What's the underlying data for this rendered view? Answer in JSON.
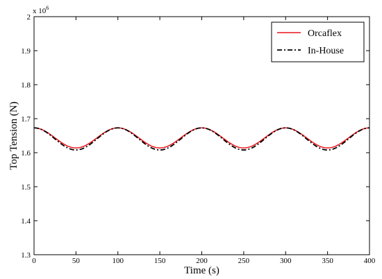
{
  "chart_data": {
    "type": "line",
    "title": "",
    "xlabel": "Time (s)",
    "ylabel": "Top Tension (N)",
    "y_exponent_label": "x 10",
    "y_exponent_power": "6",
    "xlim": [
      0,
      400
    ],
    "ylim": [
      1.3,
      2.0
    ],
    "x_ticks": [
      0,
      50,
      100,
      150,
      200,
      250,
      300,
      350,
      400
    ],
    "y_ticks": [
      1.3,
      1.4,
      1.5,
      1.6,
      1.7,
      1.8,
      1.9,
      2.0
    ],
    "y_tick_labels": [
      "1.3",
      "1.4",
      "1.5",
      "1.6",
      "1.7",
      "1.8",
      "1.9",
      "2"
    ],
    "grid": false,
    "legend_position": "top-right",
    "series": [
      {
        "name": "Orcaflex",
        "color": "#e8141b",
        "style": "solid",
        "model": {
          "mean": 1.6435,
          "amplitude": 0.0295,
          "period": 100,
          "phase_offset": 0
        },
        "x": [
          0,
          25,
          50,
          75,
          100,
          125,
          150,
          175,
          200,
          225,
          250,
          275,
          300,
          325,
          350,
          375,
          400
        ],
        "y": [
          1.673,
          1.644,
          1.614,
          1.644,
          1.673,
          1.644,
          1.614,
          1.644,
          1.673,
          1.644,
          1.614,
          1.644,
          1.673,
          1.644,
          1.614,
          1.644,
          1.673
        ]
      },
      {
        "name": "In-House",
        "color": "#000000",
        "style": "dash-dot",
        "model": {
          "mean": 1.6405,
          "amplitude": 0.0325,
          "period": 100,
          "phase_offset": 0
        },
        "x": [
          0,
          25,
          50,
          75,
          100,
          125,
          150,
          175,
          200,
          225,
          250,
          275,
          300,
          325,
          350,
          375,
          400
        ],
        "y": [
          1.673,
          1.641,
          1.608,
          1.641,
          1.673,
          1.641,
          1.608,
          1.641,
          1.673,
          1.641,
          1.608,
          1.641,
          1.673,
          1.641,
          1.608,
          1.641,
          1.673
        ]
      }
    ]
  }
}
